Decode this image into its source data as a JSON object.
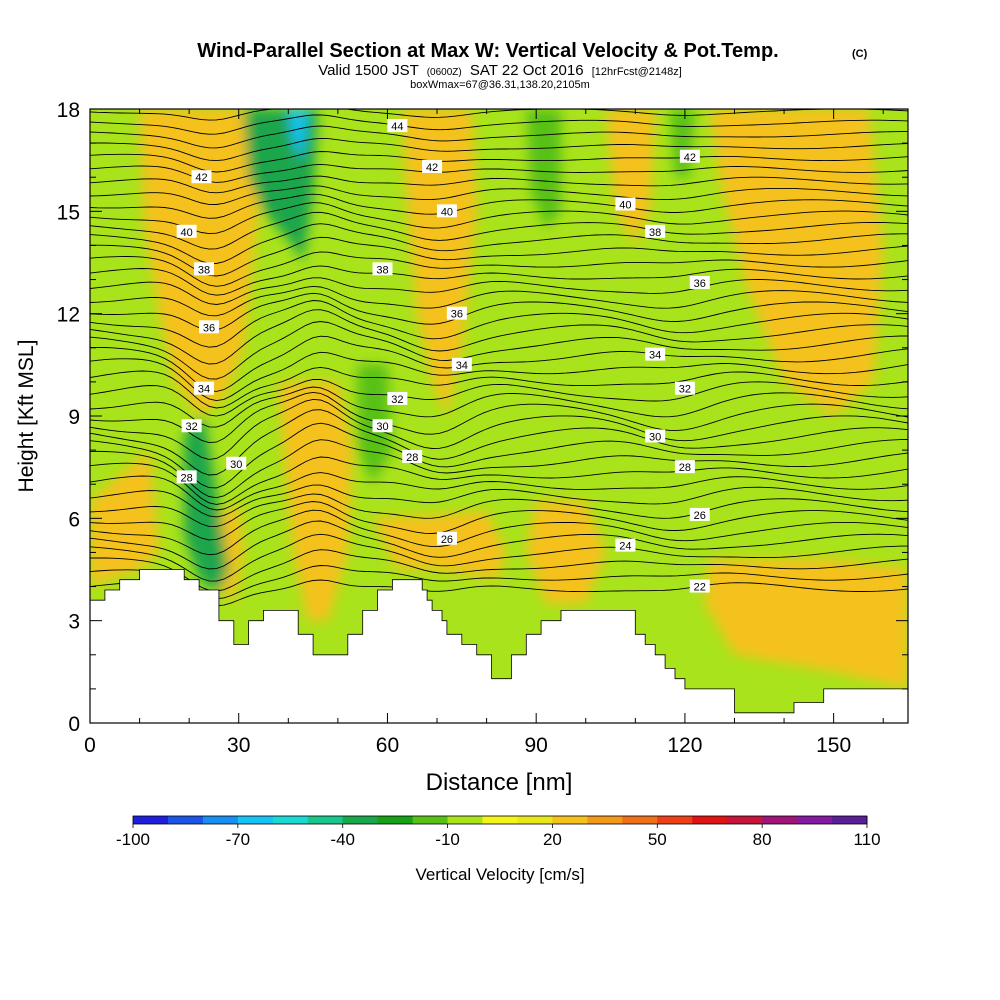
{
  "chart_data": {
    "type": "heatmap",
    "title": "Wind-Parallel Section at Max W: Vertical Velocity & Pot.Temp.",
    "title_mark": "(C)",
    "subtitle": {
      "a": "Valid 1500 JST",
      "b": "(0600Z)",
      "c": "SAT 22 Oct 2016",
      "d": "[12hrFcst@2148z]"
    },
    "subtitle2": "boxWmax=67@36.31,138.20,2105m",
    "xlabel": "Distance [nm]",
    "ylabel": "Height [Kft MSL]",
    "xlim": [
      0,
      165
    ],
    "ylim": [
      0,
      18
    ],
    "x_ticks": [
      0,
      30,
      60,
      90,
      120,
      150
    ],
    "y_ticks": [
      0,
      3,
      6,
      9,
      12,
      15,
      18
    ],
    "colorbar": {
      "label": "Vertical Velocity [cm/s]",
      "tick_labels": [
        "-100",
        "-70",
        "-40",
        "-10",
        "20",
        "50",
        "80",
        "110"
      ],
      "colors": [
        "#1e1edc",
        "#1a55e8",
        "#178ff0",
        "#17c3f5",
        "#1ad8d2",
        "#19c78c",
        "#1aa64b",
        "#17a117",
        "#59c116",
        "#a9e31b",
        "#f4f41a",
        "#e9e61a",
        "#f5c11c",
        "#f39a1a",
        "#f0701a",
        "#ee4018",
        "#e01414",
        "#c7143a",
        "#a0147a",
        "#851ba4",
        "#5a1e96"
      ]
    },
    "background_color": "#a9e31b",
    "terrain_color": "#ffffff",
    "contour_color": "#000000",
    "contour_labels": [
      {
        "text": "44",
        "x": 62,
        "y": 17.5
      },
      {
        "text": "42",
        "x": 22.5,
        "y": 16.0
      },
      {
        "text": "42",
        "x": 69,
        "y": 16.3
      },
      {
        "text": "42",
        "x": 121,
        "y": 16.6
      },
      {
        "text": "40",
        "x": 19.5,
        "y": 14.4
      },
      {
        "text": "40",
        "x": 72,
        "y": 15.0
      },
      {
        "text": "40",
        "x": 108,
        "y": 15.2
      },
      {
        "text": "38",
        "x": 23,
        "y": 13.3
      },
      {
        "text": "38",
        "x": 59,
        "y": 13.3
      },
      {
        "text": "38",
        "x": 114,
        "y": 14.4
      },
      {
        "text": "36",
        "x": 24,
        "y": 11.6
      },
      {
        "text": "36",
        "x": 74,
        "y": 12.0
      },
      {
        "text": "36",
        "x": 123,
        "y": 12.9
      },
      {
        "text": "34",
        "x": 23,
        "y": 9.8
      },
      {
        "text": "34",
        "x": 75,
        "y": 10.5
      },
      {
        "text": "34",
        "x": 114,
        "y": 10.8
      },
      {
        "text": "32",
        "x": 20.5,
        "y": 8.7
      },
      {
        "text": "32",
        "x": 62,
        "y": 9.5
      },
      {
        "text": "32",
        "x": 120,
        "y": 9.8
      },
      {
        "text": "30",
        "x": 29.5,
        "y": 7.6
      },
      {
        "text": "30",
        "x": 59,
        "y": 8.7
      },
      {
        "text": "30",
        "x": 114,
        "y": 8.4
      },
      {
        "text": "28",
        "x": 19.5,
        "y": 7.2
      },
      {
        "text": "28",
        "x": 65,
        "y": 7.8
      },
      {
        "text": "28",
        "x": 120,
        "y": 7.5
      },
      {
        "text": "26",
        "x": 72,
        "y": 5.4
      },
      {
        "text": "26",
        "x": 123,
        "y": 6.1
      },
      {
        "text": "24",
        "x": 108,
        "y": 5.2
      },
      {
        "text": "22",
        "x": 123,
        "y": 4.0
      }
    ],
    "terrain": [
      [
        0,
        3.6
      ],
      [
        3,
        3.6
      ],
      [
        3,
        3.9
      ],
      [
        6,
        3.9
      ],
      [
        6,
        4.2
      ],
      [
        10,
        4.2
      ],
      [
        10,
        4.5
      ],
      [
        19,
        4.5
      ],
      [
        19,
        4.2
      ],
      [
        22,
        4.2
      ],
      [
        22,
        3.9
      ],
      [
        26,
        3.9
      ],
      [
        26,
        3.0
      ],
      [
        29,
        3.0
      ],
      [
        29,
        2.3
      ],
      [
        32,
        2.3
      ],
      [
        32,
        3.0
      ],
      [
        35,
        3.0
      ],
      [
        35,
        3.3
      ],
      [
        42,
        3.3
      ],
      [
        42,
        2.6
      ],
      [
        45,
        2.6
      ],
      [
        45,
        2.0
      ],
      [
        52,
        2.0
      ],
      [
        52,
        2.6
      ],
      [
        55,
        2.6
      ],
      [
        55,
        3.3
      ],
      [
        58,
        3.3
      ],
      [
        58,
        3.9
      ],
      [
        61,
        3.9
      ],
      [
        61,
        4.2
      ],
      [
        67,
        4.2
      ],
      [
        67,
        3.9
      ],
      [
        68,
        3.9
      ],
      [
        68,
        3.6
      ],
      [
        69,
        3.6
      ],
      [
        69,
        3.3
      ],
      [
        71,
        3.3
      ],
      [
        71,
        3.0
      ],
      [
        72,
        3.0
      ],
      [
        72,
        2.6
      ],
      [
        75,
        2.6
      ],
      [
        75,
        2.3
      ],
      [
        78,
        2.3
      ],
      [
        78,
        2.0
      ],
      [
        81,
        2.0
      ],
      [
        81,
        1.3
      ],
      [
        85,
        1.3
      ],
      [
        85,
        2.0
      ],
      [
        88,
        2.0
      ],
      [
        88,
        2.6
      ],
      [
        91,
        2.6
      ],
      [
        91,
        3.0
      ],
      [
        95,
        3.0
      ],
      [
        95,
        3.3
      ],
      [
        110,
        3.3
      ],
      [
        110,
        2.6
      ],
      [
        112,
        2.6
      ],
      [
        112,
        2.3
      ],
      [
        114,
        2.3
      ],
      [
        114,
        2.0
      ],
      [
        116,
        2.0
      ],
      [
        116,
        1.6
      ],
      [
        118,
        1.6
      ],
      [
        118,
        1.3
      ],
      [
        120,
        1.3
      ],
      [
        120,
        1.0
      ],
      [
        130,
        1.0
      ],
      [
        130,
        0.3
      ],
      [
        142,
        0.3
      ],
      [
        142,
        0.6
      ],
      [
        148,
        0.6
      ],
      [
        148,
        1.0
      ],
      [
        165,
        1.0
      ],
      [
        165,
        0
      ],
      [
        0,
        0
      ]
    ],
    "series": [
      {
        "type": "updraft",
        "value": 80,
        "points": [
          [
            19,
            18
          ],
          [
            25,
            18
          ],
          [
            27,
            16
          ],
          [
            25,
            13
          ],
          [
            21,
            12.5
          ],
          [
            18.5,
            14
          ],
          [
            19,
            16
          ]
        ]
      },
      {
        "type": "updraft",
        "value": 30,
        "points": [
          [
            15,
            18
          ],
          [
            29,
            18
          ],
          [
            31,
            15
          ],
          [
            28,
            11.5
          ],
          [
            24,
            10.5
          ],
          [
            19,
            11
          ],
          [
            17,
            14
          ],
          [
            16,
            16.5
          ]
        ]
      },
      {
        "type": "updraft",
        "value": 20,
        "points": [
          [
            10,
            18
          ],
          [
            33,
            18
          ],
          [
            34,
            15
          ],
          [
            31,
            11
          ],
          [
            27,
            9.5
          ],
          [
            22,
            9
          ],
          [
            17,
            10
          ],
          [
            14,
            12
          ],
          [
            11,
            14.5
          ]
        ]
      },
      {
        "type": "updraft",
        "value": 50,
        "points": [
          [
            43,
            8
          ],
          [
            48,
            8
          ],
          [
            49,
            5.5
          ],
          [
            47,
            3
          ],
          [
            45,
            3.5
          ],
          [
            44,
            5.5
          ]
        ]
      },
      {
        "type": "updraft",
        "value": 20,
        "points": [
          [
            38,
            10
          ],
          [
            50,
            10
          ],
          [
            53,
            8
          ],
          [
            52,
            5
          ],
          [
            48,
            3
          ],
          [
            44,
            3
          ],
          [
            41,
            5
          ],
          [
            39,
            8
          ]
        ]
      },
      {
        "type": "updraft",
        "value": 20,
        "points": [
          [
            26,
            6
          ],
          [
            30,
            6.5
          ],
          [
            31,
            5
          ],
          [
            29,
            3.5
          ],
          [
            26,
            4
          ]
        ]
      },
      {
        "type": "updraft",
        "value": 30,
        "points": [
          [
            66,
            18
          ],
          [
            74,
            18
          ],
          [
            75,
            16
          ],
          [
            72,
            13
          ],
          [
            70,
            11.5
          ],
          [
            68,
            13
          ],
          [
            66,
            16
          ]
        ]
      },
      {
        "type": "updraft",
        "value": 20,
        "points": [
          [
            63,
            18
          ],
          [
            77,
            18
          ],
          [
            78,
            15
          ],
          [
            75,
            11
          ],
          [
            72,
            9
          ],
          [
            69,
            10
          ],
          [
            66,
            12
          ],
          [
            64,
            15
          ]
        ]
      },
      {
        "type": "updraft",
        "value": 20,
        "points": [
          [
            104,
            18
          ],
          [
            114,
            18
          ],
          [
            113,
            15
          ],
          [
            110,
            14
          ],
          [
            106,
            15
          ]
        ]
      },
      {
        "type": "updraft",
        "value": 20,
        "points": [
          [
            125,
            18
          ],
          [
            157,
            18
          ],
          [
            160,
            14
          ],
          [
            158,
            10
          ],
          [
            150,
            9
          ],
          [
            140,
            10
          ],
          [
            132,
            13
          ],
          [
            127,
            16
          ]
        ]
      },
      {
        "type": "updraft",
        "value": 20,
        "points": [
          [
            57,
            6
          ],
          [
            80,
            6.2
          ],
          [
            84,
            5
          ],
          [
            82,
            4.2
          ],
          [
            70,
            4.5
          ],
          [
            62,
            4.5
          ]
        ]
      },
      {
        "type": "updraft",
        "value": 20,
        "points": [
          [
            90,
            6.5
          ],
          [
            100,
            6.5
          ],
          [
            104,
            5
          ],
          [
            100,
            3.5
          ],
          [
            92,
            3.5
          ],
          [
            88,
            5
          ]
        ]
      },
      {
        "type": "updraft",
        "value": 20,
        "points": [
          [
            0,
            6.5
          ],
          [
            12,
            8
          ],
          [
            14,
            5
          ],
          [
            10,
            4.5
          ],
          [
            0,
            4
          ]
        ]
      },
      {
        "type": "updraft",
        "value": 20,
        "points": [
          [
            125,
            4.8
          ],
          [
            150,
            4.8
          ],
          [
            165,
            4.5
          ],
          [
            165,
            1
          ],
          [
            150,
            1.5
          ],
          [
            130,
            2
          ],
          [
            124,
            3.5
          ]
        ]
      },
      {
        "type": "downdraft",
        "value": -40,
        "points": [
          [
            31,
            18
          ],
          [
            46,
            18
          ],
          [
            45,
            15.5
          ],
          [
            43,
            13.5
          ],
          [
            41,
            14
          ],
          [
            35,
            15
          ],
          [
            32,
            16
          ]
        ]
      },
      {
        "type": "downdraft",
        "value": -70,
        "points": [
          [
            40,
            18
          ],
          [
            44,
            18
          ],
          [
            43,
            16.5
          ],
          [
            41,
            17
          ]
        ]
      },
      {
        "type": "downdraft",
        "value": -40,
        "points": [
          [
            19,
            8.5
          ],
          [
            23,
            9
          ],
          [
            28,
            4.5
          ],
          [
            26,
            3.8
          ],
          [
            22,
            4.2
          ],
          [
            19,
            5.5
          ]
        ]
      },
      {
        "type": "downdraft",
        "value": -20,
        "points": [
          [
            54,
            10.5
          ],
          [
            60,
            10.5
          ],
          [
            61,
            8
          ],
          [
            57,
            7
          ],
          [
            54,
            8
          ]
        ]
      },
      {
        "type": "downdraft",
        "value": -20,
        "points": [
          [
            88,
            18
          ],
          [
            95,
            18
          ],
          [
            95,
            15
          ],
          [
            92,
            14.5
          ],
          [
            89,
            15.5
          ]
        ]
      },
      {
        "type": "downdraft",
        "value": -20,
        "points": [
          [
            117,
            18
          ],
          [
            122,
            18
          ],
          [
            121,
            16
          ],
          [
            118,
            16
          ]
        ]
      }
    ]
  }
}
